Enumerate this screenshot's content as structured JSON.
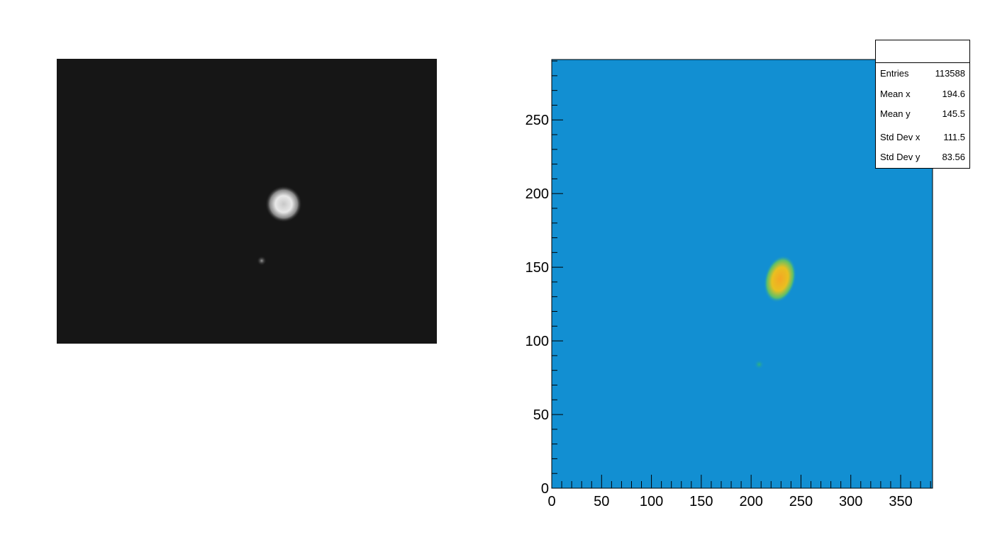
{
  "left_panel": {
    "type": "grayscale-image",
    "background": "#161616"
  },
  "chart_data": {
    "type": "heatmap",
    "title": "",
    "xlabel": "",
    "ylabel": "",
    "xlim": [
      0,
      382
    ],
    "ylim": [
      0,
      291
    ],
    "xticks": [
      0,
      50,
      100,
      150,
      200,
      250,
      300,
      350
    ],
    "yticks": [
      0,
      50,
      100,
      150,
      200,
      250
    ],
    "background_color": "#128fd2",
    "features": [
      {
        "kind": "hotspot",
        "x": 229,
        "y": 142,
        "color": "#f2b21c"
      },
      {
        "kind": "faint-spot",
        "x": 208,
        "y": 84,
        "color": "#2eb57d"
      }
    ],
    "grid": false,
    "stats": {
      "title": "",
      "rows": [
        {
          "label": "Entries",
          "value": "113588"
        },
        {
          "label": "Mean x",
          "value": "194.6"
        },
        {
          "label": "Mean y",
          "value": "145.5"
        },
        {
          "label": "Std Dev x",
          "value": "111.5"
        },
        {
          "label": "Std Dev y",
          "value": "83.56"
        }
      ]
    }
  }
}
